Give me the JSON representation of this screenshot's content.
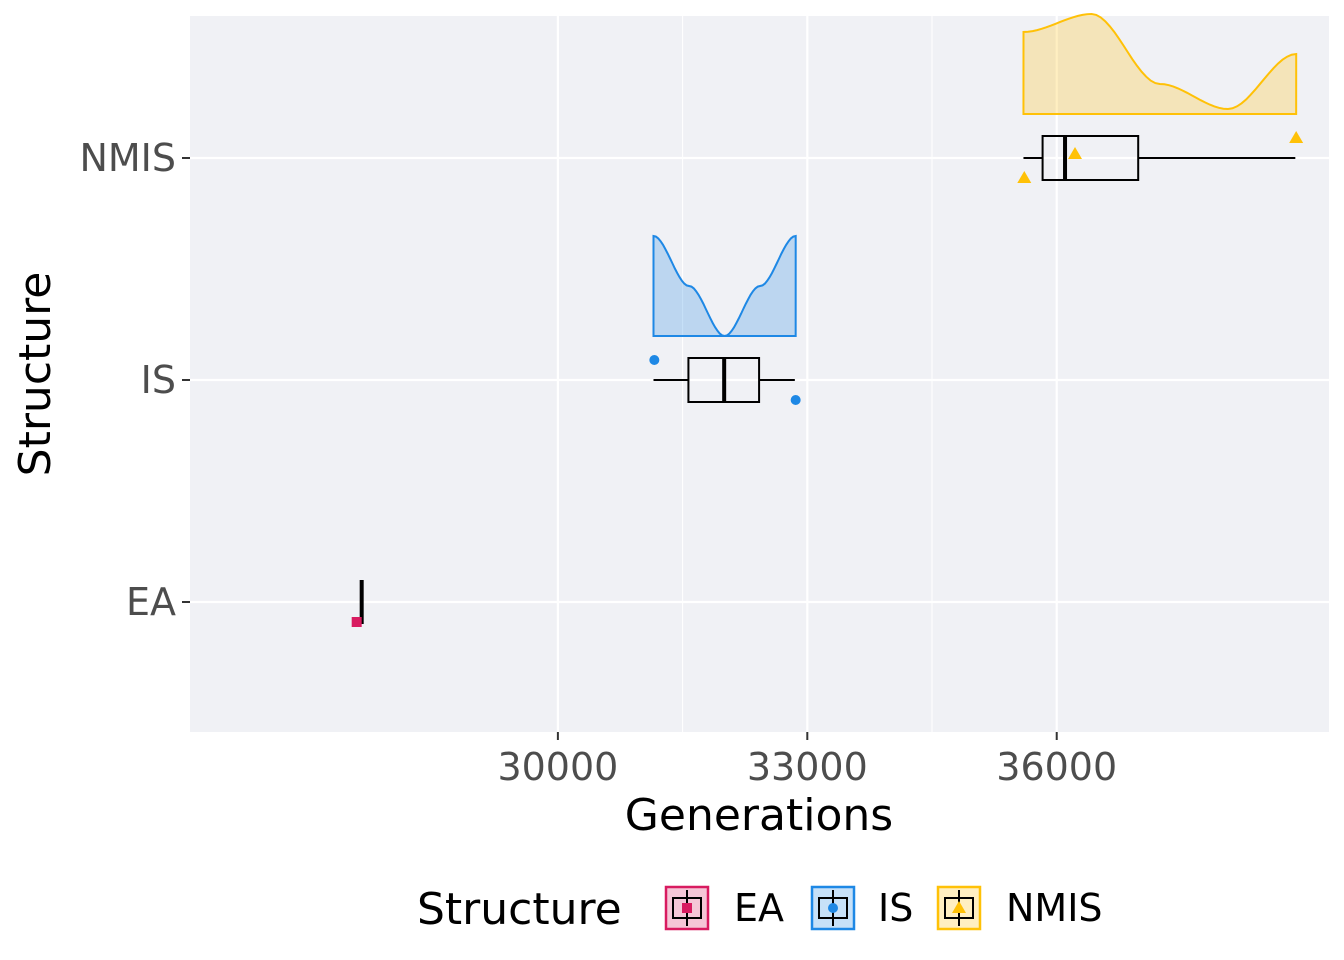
{
  "chart_data": {
    "type": "raincloud",
    "xlabel": "Generations",
    "ylabel": "Structure",
    "xlim": [
      25575,
      39275
    ],
    "x_ticks": [
      30000,
      33000,
      36000
    ],
    "x_tick_labels": [
      "30000",
      "33000",
      "36000"
    ],
    "categories": [
      "EA",
      "IS",
      "NMIS"
    ],
    "grid": true,
    "legend": {
      "title": "Structure",
      "position": "bottom",
      "items": [
        "EA",
        "IS",
        "NMIS"
      ]
    },
    "series": [
      {
        "name": "EA",
        "color": "#d81b60",
        "shape": "square",
        "box": {
          "min": 27640,
          "q1": 27640,
          "median": 27640,
          "q3": 27640,
          "max": 27640
        },
        "points": [
          {
            "x": 27580,
            "jitter": -1
          }
        ],
        "density": null
      },
      {
        "name": "IS",
        "color": "#1e88e5",
        "shape": "circle",
        "box": {
          "min": 31150,
          "q1": 31570,
          "median": 32000,
          "q3": 32420,
          "max": 32850
        },
        "points": [
          {
            "x": 31160,
            "jitter": 1
          },
          {
            "x": 32860,
            "jitter": -1
          }
        ],
        "density": {
          "range": [
            31150,
            32860
          ],
          "shape": [
            1.0,
            0.5,
            0.0,
            0.5,
            1.0
          ]
        }
      },
      {
        "name": "NMIS",
        "color": "#ffc107",
        "shape": "triangle",
        "box": {
          "min": 35600,
          "q1": 35830,
          "median": 36100,
          "q3": 36980,
          "max": 38870
        },
        "points": [
          {
            "x": 35610,
            "jitter": -1
          },
          {
            "x": 36220,
            "jitter": 0.2
          },
          {
            "x": 38880,
            "jitter": 1
          }
        ],
        "density": {
          "range": [
            35600,
            38880
          ],
          "shape": [
            0.82,
            1.0,
            0.3,
            0.05,
            0.6
          ]
        }
      }
    ]
  }
}
